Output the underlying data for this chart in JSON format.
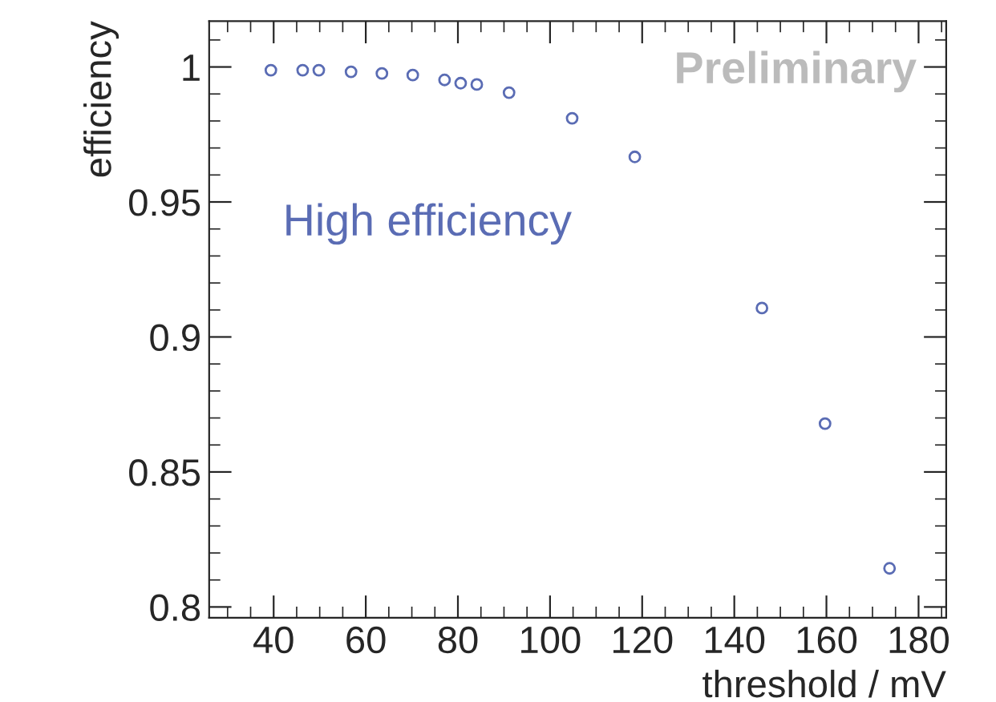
{
  "chart_data": {
    "type": "scatter",
    "xlabel": "threshold / mV",
    "ylabel": "efficiency",
    "x": [
      39.4,
      46.3,
      49.8,
      56.8,
      63.5,
      70.2,
      77.1,
      80.6,
      84.1,
      91.1,
      104.8,
      118.4,
      146,
      159.7,
      173.7
    ],
    "series": [
      {
        "color": "#5a6cb4",
        "values": [
          0.9988,
          0.9988,
          0.9988,
          0.9982,
          0.9976,
          0.997,
          0.9952,
          0.994,
          0.9935,
          0.9905,
          0.981,
          0.9667,
          0.9107,
          0.8679,
          0.8143
        ]
      }
    ],
    "marker": "circle",
    "xlim": [
      26,
      186
    ],
    "xticks": [
      40,
      60,
      80,
      100,
      120,
      140,
      160,
      180
    ],
    "ylim": [
      0.796,
      1.017
    ],
    "yticks": [
      {
        "value": 0.8,
        "label": "0.8"
      },
      {
        "value": 0.85,
        "label": "0.85"
      },
      {
        "value": 0.9,
        "label": "0.9"
      },
      {
        "value": 0.95,
        "label": "0.95"
      },
      {
        "value": 1,
        "label": "1"
      }
    ],
    "grid": false,
    "legend": false,
    "annotations": [
      "Preliminary",
      "High efficiency"
    ]
  }
}
